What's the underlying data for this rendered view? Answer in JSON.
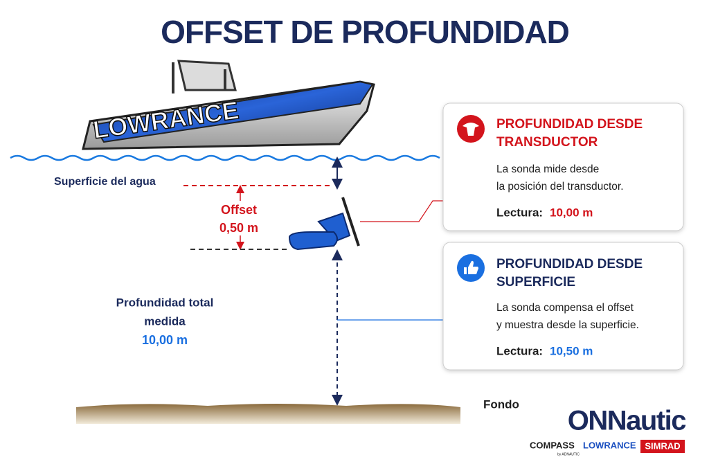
{
  "title": "OFFSET DE PROFUNDIDAD",
  "boat_logo": "LOWRANCE",
  "labels": {
    "surface": "Superficie del agua",
    "offset": [
      "Offset",
      "0,50 m"
    ],
    "total_depth": [
      "Profundidad total",
      "medida",
      "10,00 m"
    ],
    "bottom": "Fondo"
  },
  "cards": [
    {
      "title_lines": [
        "PROFUNDIDAD DESDE",
        "TRANSDUCTOR"
      ],
      "text_lines": [
        "La sonda mide desde",
        "la posición del transductor."
      ],
      "reading_label": "Lectura:",
      "reading_value": "10,00 m"
    },
    {
      "title_lines": [
        "PROFUNDIDAD DESDE",
        "SUPERFICIE"
      ],
      "text_lines": [
        "La sonda compensa el offset",
        "y muestra desde la superficie."
      ],
      "reading_label": "Lectura:",
      "reading_value": "10,50 m"
    }
  ],
  "brand": {
    "logo": "ONNautic",
    "partners": [
      "COMPASS",
      "by ADNAUTIC",
      "LOWRANCE",
      "SIMRAD"
    ]
  }
}
